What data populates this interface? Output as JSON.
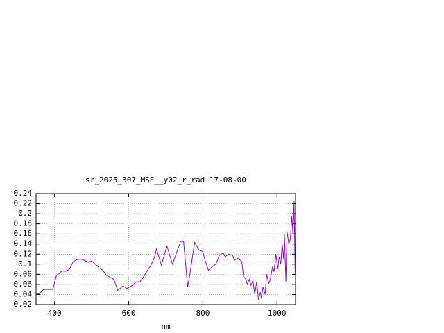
{
  "chart_data": {
    "type": "line",
    "title": "sr_2025_307_MSE__y02_r_rad 17-08-00",
    "x_label": "nm",
    "color": "#9400d3",
    "grid": true,
    "xlim": [
      350,
      1050
    ],
    "ylim": [
      0.02,
      0.24
    ],
    "xticks": [
      400,
      600,
      800,
      1000
    ],
    "yticks": [
      0.02,
      0.04,
      0.06,
      0.08,
      0.1,
      0.12,
      0.14,
      0.16,
      0.18,
      0.2,
      0.22,
      0.24
    ],
    "x": [
      350,
      360,
      370,
      380,
      395,
      405,
      410,
      420,
      430,
      440,
      450,
      460,
      470,
      480,
      490,
      500,
      510,
      520,
      530,
      540,
      550,
      560,
      570,
      585,
      595,
      610,
      620,
      630,
      640,
      650,
      660,
      670,
      675,
      688,
      703,
      718,
      730,
      740,
      748,
      759,
      765,
      775,
      778,
      790,
      800,
      805,
      815,
      825,
      835,
      845,
      855,
      860,
      870,
      880,
      885,
      895,
      905,
      910,
      915,
      920,
      925,
      930,
      935,
      940,
      945,
      950,
      955,
      958,
      962,
      968,
      972,
      978,
      982,
      988,
      992,
      997,
      1002,
      1006,
      1010,
      1014,
      1018,
      1020,
      1024,
      1027,
      1032,
      1036,
      1040,
      1043,
      1046,
      1049
    ],
    "values": [
      0.04,
      0.042,
      0.05,
      0.05,
      0.05,
      0.078,
      0.08,
      0.087,
      0.086,
      0.09,
      0.105,
      0.109,
      0.11,
      0.108,
      0.104,
      0.106,
      0.1,
      0.093,
      0.088,
      0.078,
      0.074,
      0.07,
      0.048,
      0.057,
      0.052,
      0.058,
      0.065,
      0.065,
      0.075,
      0.087,
      0.098,
      0.115,
      0.13,
      0.098,
      0.136,
      0.1,
      0.125,
      0.145,
      0.145,
      0.055,
      0.08,
      0.13,
      0.143,
      0.128,
      0.125,
      0.11,
      0.088,
      0.095,
      0.1,
      0.118,
      0.122,
      0.115,
      0.12,
      0.118,
      0.108,
      0.112,
      0.105,
      0.075,
      0.072,
      0.06,
      0.07,
      0.058,
      0.068,
      0.04,
      0.065,
      0.03,
      0.045,
      0.032,
      0.055,
      0.04,
      0.08,
      0.062,
      0.07,
      0.095,
      0.085,
      0.12,
      0.09,
      0.115,
      0.1,
      0.14,
      0.11,
      0.16,
      0.065,
      0.165,
      0.14,
      0.15,
      0.195,
      0.16,
      0.225,
      0.08
    ]
  }
}
